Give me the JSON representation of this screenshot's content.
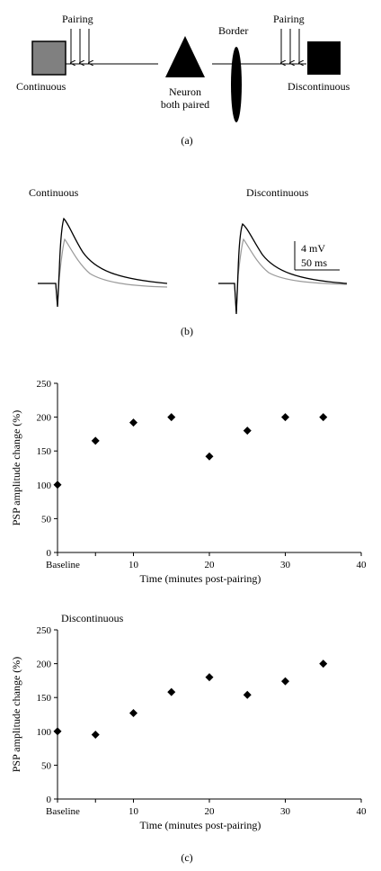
{
  "panel_a": {
    "pairing_left": "Pairing",
    "pairing_right": "Pairing",
    "continuous": "Continuous",
    "discontinuous": "Discontinuous",
    "neuron_line1": "Neuron",
    "neuron_line2": "both paired",
    "border": "Border",
    "label": "(a)"
  },
  "panel_b": {
    "continuous": "Continuous",
    "discontinuous": "Discontinuous",
    "scale_mv": "4 mV",
    "scale_ms": "50 ms",
    "label": "(b)"
  },
  "panel_c_label": "(c)",
  "chart_data": [
    {
      "type": "scatter",
      "title": "",
      "xlabel": "Time (minutes post-pairing)",
      "ylabel": "PSP amplitude change (%)",
      "xlim": [
        0,
        40
      ],
      "ylim": [
        0,
        250
      ],
      "xticks": [
        10,
        20,
        30,
        40
      ],
      "yticks": [
        0,
        50,
        100,
        150,
        200,
        250
      ],
      "baseline_label": "Baseline",
      "points": [
        {
          "x": 0,
          "y": 100
        },
        {
          "x": 5,
          "y": 165
        },
        {
          "x": 10,
          "y": 192
        },
        {
          "x": 15,
          "y": 200
        },
        {
          "x": 20,
          "y": 142
        },
        {
          "x": 25,
          "y": 180
        },
        {
          "x": 30,
          "y": 200
        },
        {
          "x": 35,
          "y": 200
        }
      ]
    },
    {
      "type": "scatter",
      "title": "Discontinuous",
      "xlabel": "Time (minutes post-pairing)",
      "ylabel": "PSP amplitude change (%)",
      "xlim": [
        0,
        40
      ],
      "ylim": [
        0,
        250
      ],
      "xticks": [
        10,
        20,
        30,
        40
      ],
      "yticks": [
        0,
        50,
        100,
        150,
        200,
        250
      ],
      "baseline_label": "Baseline",
      "points": [
        {
          "x": 0,
          "y": 100
        },
        {
          "x": 5,
          "y": 95
        },
        {
          "x": 10,
          "y": 127
        },
        {
          "x": 15,
          "y": 158
        },
        {
          "x": 20,
          "y": 180
        },
        {
          "x": 25,
          "y": 154
        },
        {
          "x": 30,
          "y": 174
        },
        {
          "x": 35,
          "y": 200
        }
      ]
    }
  ]
}
